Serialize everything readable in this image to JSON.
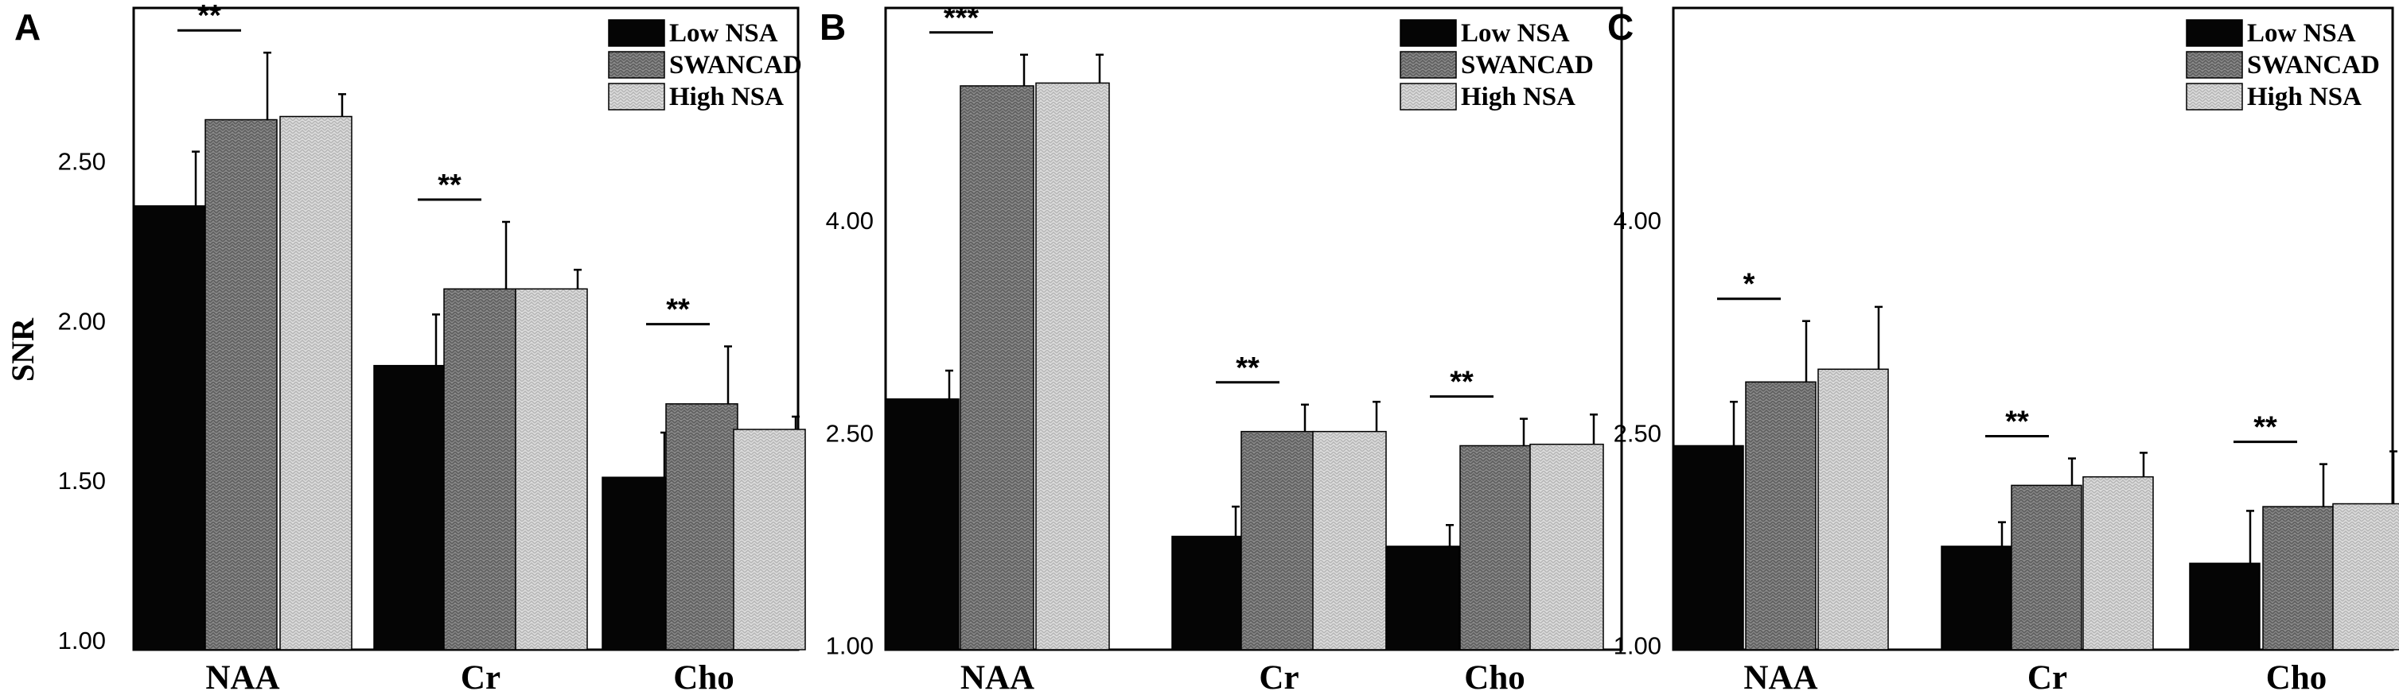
{
  "figure": {
    "y_axis_label": "SNR",
    "legend": [
      "Low NSA",
      "SWANCAD",
      "High NSA"
    ],
    "colors": {
      "low": "#050505",
      "swancad": "#8a8a8a",
      "high": "#d8d8d8",
      "axis": "#000000"
    }
  },
  "chart_data": [
    {
      "type": "bar",
      "panel": "A",
      "categories": [
        "NAA",
        "Cr",
        "Cho"
      ],
      "series": [
        {
          "name": "Low NSA",
          "values": [
            2.36,
            1.86,
            1.51
          ],
          "errors": [
            0.17,
            0.16,
            0.14
          ]
        },
        {
          "name": "SWANCAD",
          "values": [
            2.63,
            2.1,
            1.74
          ],
          "errors": [
            0.21,
            0.21,
            0.18
          ]
        },
        {
          "name": "High NSA",
          "values": [
            2.64,
            2.1,
            1.66
          ],
          "errors": [
            0.07,
            0.06,
            0.04
          ]
        }
      ],
      "significance": [
        "**",
        "**",
        "**"
      ],
      "ylabel": "SNR",
      "yticks": [
        "1.00",
        "1.50",
        "2.00",
        "2.50"
      ],
      "ylim": [
        0.97,
        2.98
      ]
    },
    {
      "type": "bar",
      "panel": "B",
      "categories": [
        "NAA",
        "Cr",
        "Cho"
      ],
      "series": [
        {
          "name": "Low NSA",
          "values": [
            2.74,
            1.77,
            1.7
          ],
          "errors": [
            0.2,
            0.21,
            0.15
          ]
        },
        {
          "name": "SWANCAD",
          "values": [
            4.95,
            2.51,
            2.41
          ],
          "errors": [
            0.22,
            0.19,
            0.19
          ]
        },
        {
          "name": "High NSA",
          "values": [
            4.97,
            2.51,
            2.42
          ],
          "errors": [
            0.2,
            0.21,
            0.21
          ]
        }
      ],
      "significance": [
        "***",
        "**",
        "**"
      ],
      "ylabel": "",
      "yticks": [
        "1.00",
        "2.50",
        "4.00"
      ],
      "ylim": [
        0.97,
        5.5
      ]
    },
    {
      "type": "bar",
      "panel": "C",
      "categories": [
        "NAA",
        "Cr",
        "Cho"
      ],
      "series": [
        {
          "name": "Low NSA",
          "values": [
            2.41,
            1.7,
            1.58
          ],
          "errors": [
            0.31,
            0.17,
            0.37
          ]
        },
        {
          "name": "SWANCAD",
          "values": [
            2.86,
            2.13,
            1.98
          ],
          "errors": [
            0.43,
            0.19,
            0.3
          ]
        },
        {
          "name": "High NSA",
          "values": [
            2.95,
            2.19,
            2.0
          ],
          "errors": [
            0.44,
            0.17,
            0.37
          ]
        }
      ],
      "significance": [
        "*",
        "**",
        "**"
      ],
      "ylabel": "",
      "yticks": [
        "1.00",
        "2.50",
        "4.00"
      ],
      "ylim": [
        0.97,
        5.5
      ]
    }
  ]
}
